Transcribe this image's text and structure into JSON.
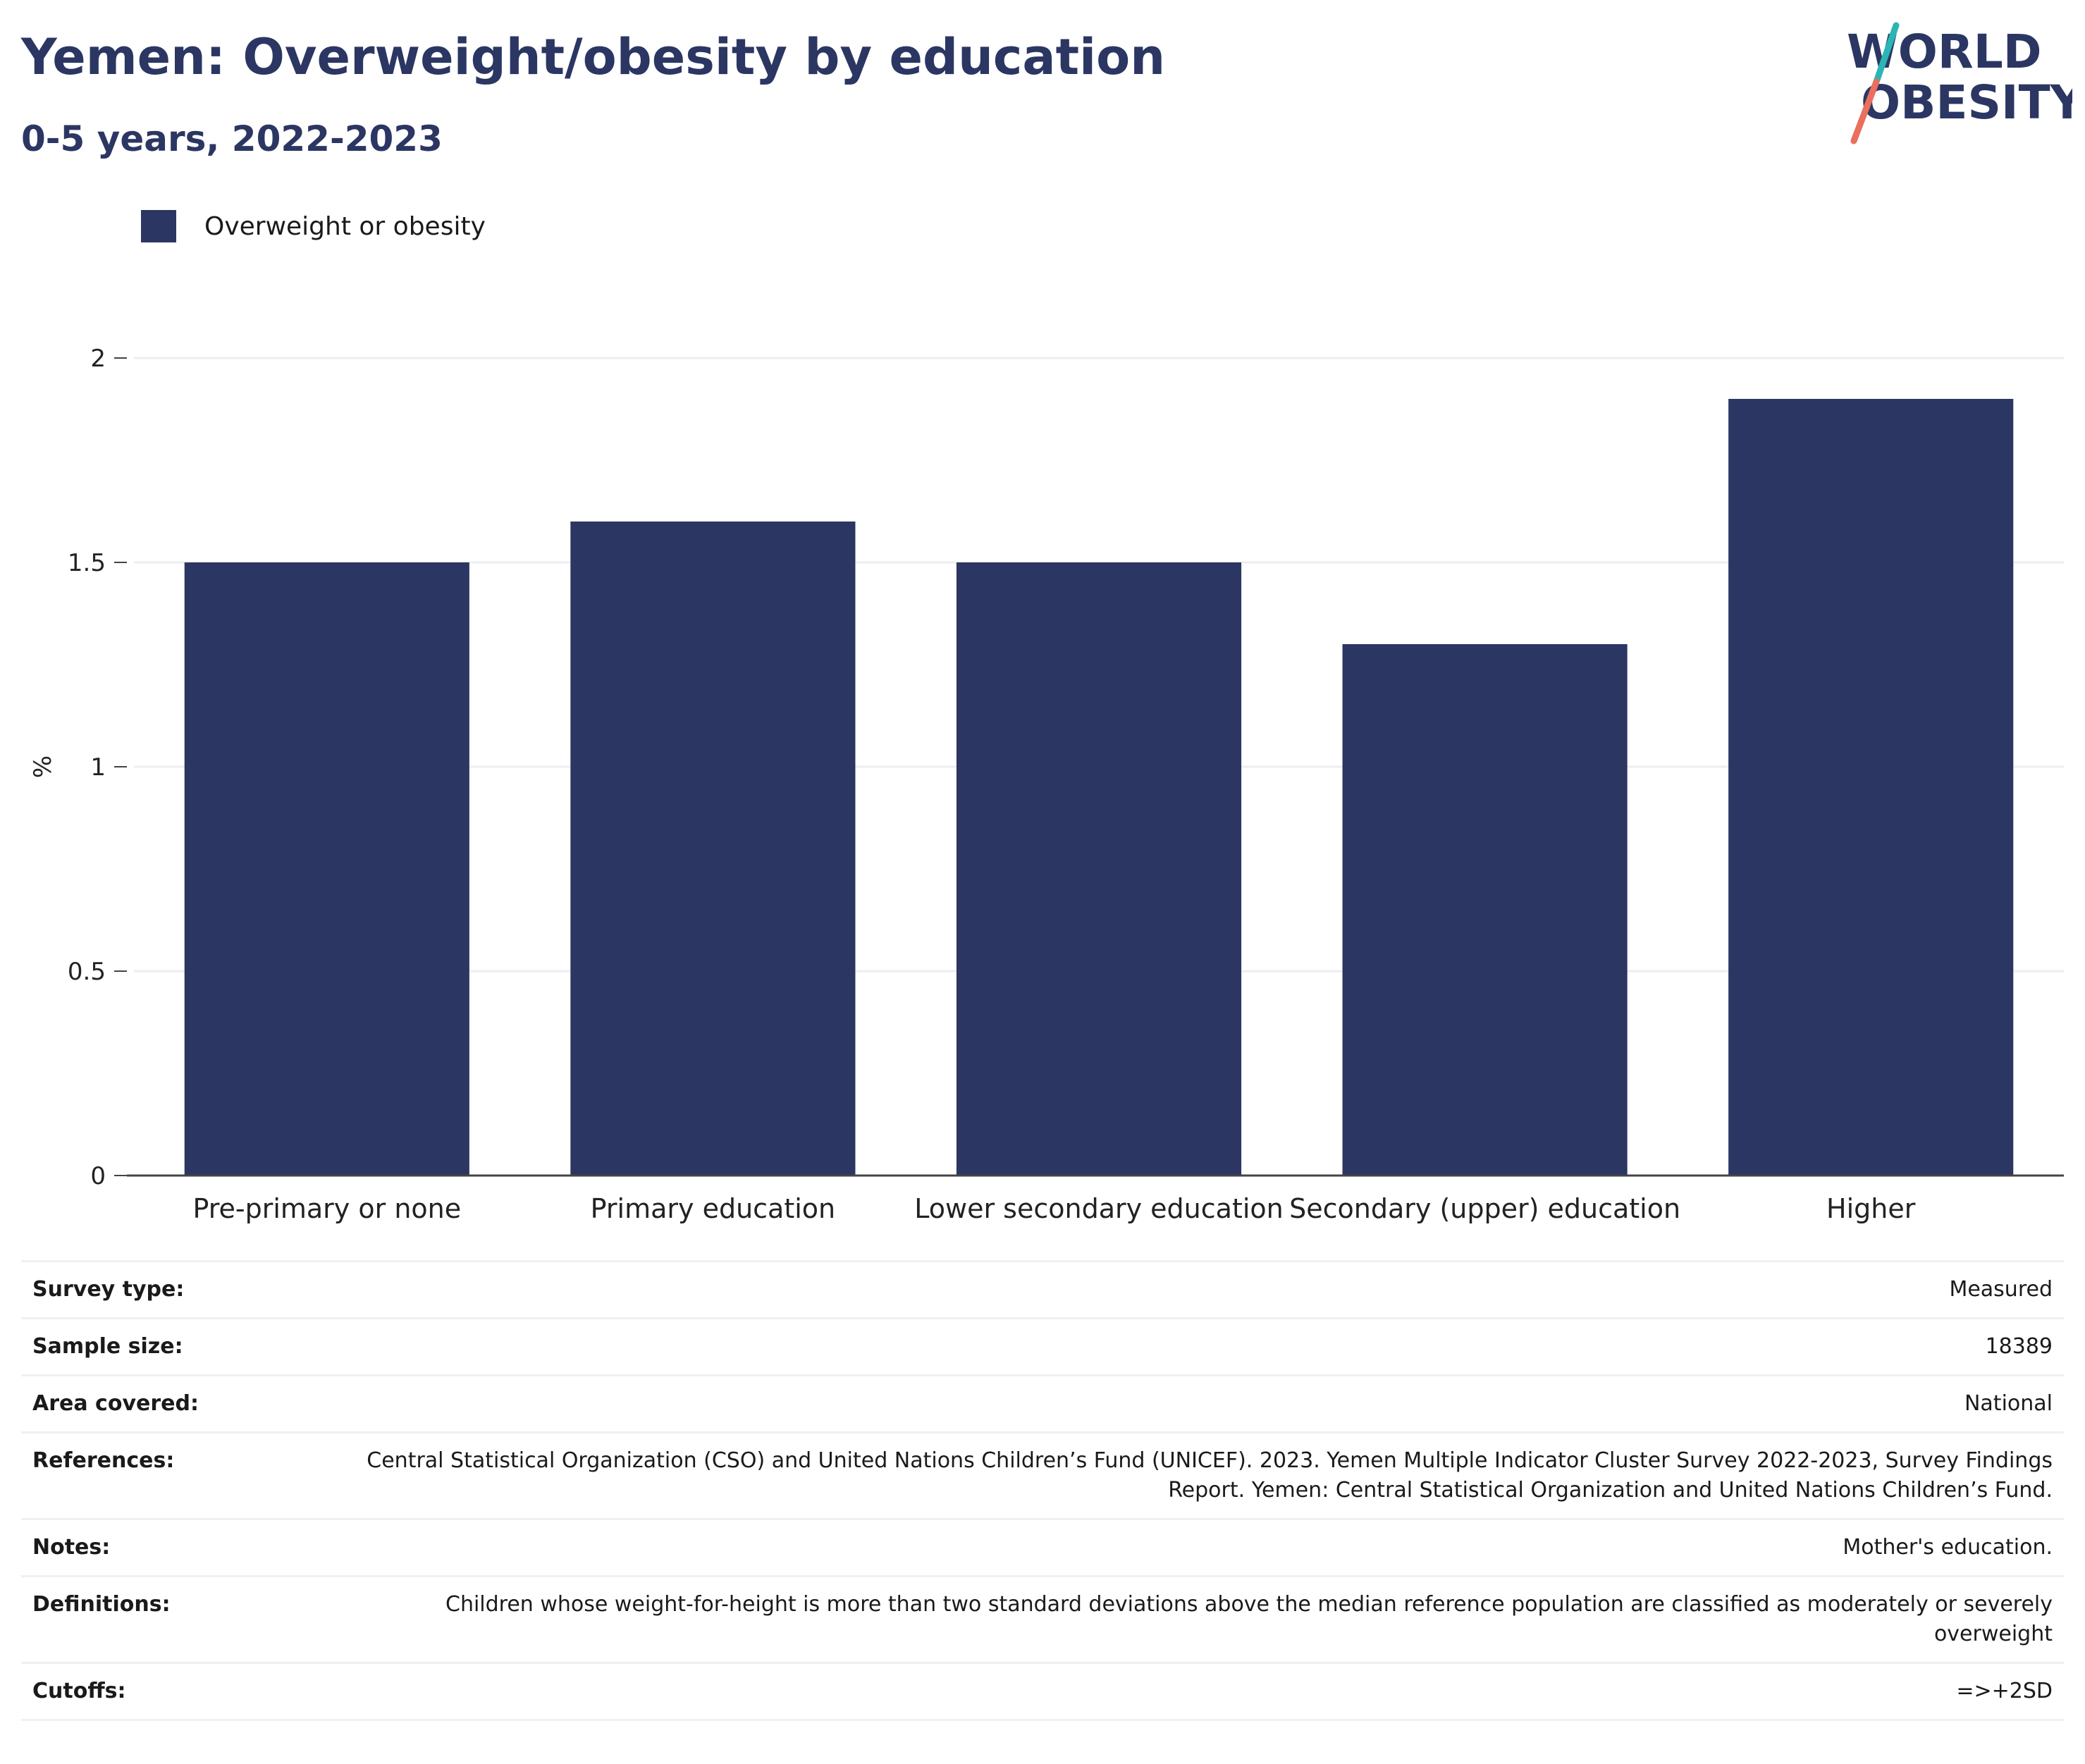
{
  "header": {
    "title": "Yemen: Overweight/obesity by education",
    "subtitle": "0-5 years, 2022-2023"
  },
  "logo": {
    "line1": "WORLD",
    "line2": "OBESITY"
  },
  "legend": {
    "label": "Overweight or obesity",
    "color": "#2b3663"
  },
  "chart_data": {
    "type": "bar",
    "categories": [
      "Pre-primary or none",
      "Primary education",
      "Lower secondary education",
      "Secondary (upper) education",
      "Higher"
    ],
    "series": [
      {
        "name": "Overweight or obesity",
        "values": [
          1.5,
          1.6,
          1.5,
          1.3,
          1.9
        ],
        "color": "#2b3663"
      }
    ],
    "xlabel": "",
    "ylabel": "%",
    "ylim": [
      0,
      2
    ],
    "yticks": [
      "0",
      "0.5",
      "1",
      "1.5",
      "2"
    ],
    "grid": true,
    "legend_position": "top-left"
  },
  "meta": [
    {
      "label": "Survey type:",
      "value": "Measured"
    },
    {
      "label": "Sample size:",
      "value": "18389"
    },
    {
      "label": "Area covered:",
      "value": "National"
    },
    {
      "label": "References:",
      "value": "Central Statistical Organization (CSO) and United Nations Children’s Fund (UNICEF). 2023. Yemen Multiple Indicator Cluster Survey 2022-2023, Survey Findings Report. Yemen: Central Statistical Organization and United Nations Children’s Fund."
    },
    {
      "label": "Notes:",
      "value": "Mother's education."
    },
    {
      "label": "Definitions:",
      "value": "Children whose weight-for-height is more than two standard deviations above the median reference population are classified as moderately or severely overweight"
    },
    {
      "label": "Cutoffs:",
      "value": "=>+2SD"
    }
  ]
}
